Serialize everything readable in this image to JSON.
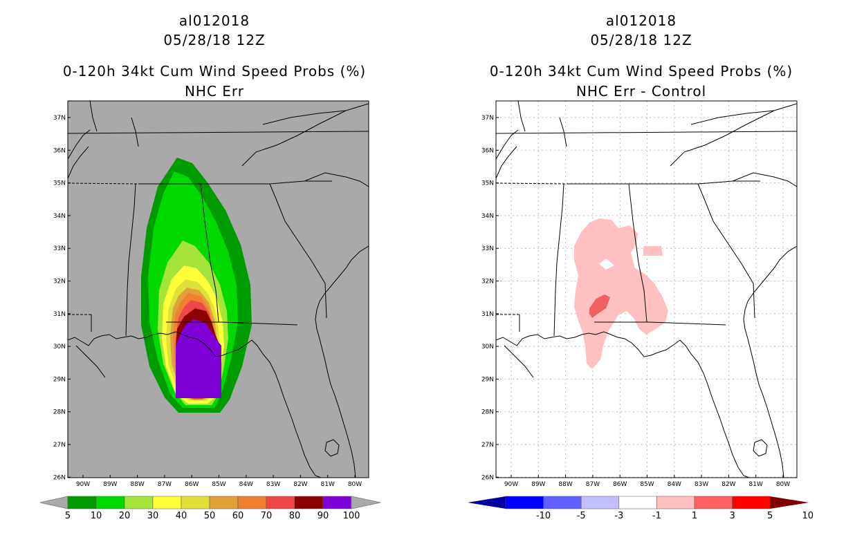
{
  "left_panel": {
    "storm_id": "al012018",
    "date": "05/28/18 12Z",
    "title": "0-120h 34kt Cum Wind Speed Probs (%)",
    "subtitle": "NHC Err",
    "colorbar_labels": [
      "5",
      "10",
      "20",
      "30",
      "40",
      "50",
      "60",
      "70",
      "80",
      "90",
      "100"
    ],
    "colorbar_colors": [
      "#009b00",
      "#00d900",
      "#a5e53a",
      "#ffff3a",
      "#e0e03a",
      "#e0a03a",
      "#f08030",
      "#f04848",
      "#8c0000",
      "#8000d8"
    ]
  },
  "right_panel": {
    "storm_id": "al012018",
    "date": "05/28/18 12Z",
    "title": "0-120h 34kt Cum Wind Speed Probs (%)",
    "subtitle": "NHC Err - Control",
    "colorbar_labels": [
      "-10",
      "-5",
      "-3",
      "-1",
      "1",
      "3",
      "5",
      "10"
    ],
    "colorbar_colors": [
      "#0000a0",
      "#0000ff",
      "#6060ff",
      "#c0c0ff",
      "#ffffff",
      "#ffc0c0",
      "#ff6060",
      "#ff0000",
      "#800000"
    ]
  },
  "axes": {
    "lat_labels": [
      "37N",
      "36N",
      "35N",
      "34N",
      "33N",
      "32N",
      "31N",
      "30N",
      "29N",
      "28N",
      "27N",
      "26N"
    ],
    "lon_labels": [
      "90W",
      "89W",
      "88W",
      "87W",
      "86W",
      "85W",
      "84W",
      "83W",
      "82W",
      "81W",
      "80W"
    ]
  },
  "colors": {
    "land_gray": "#a9a9a9",
    "diff_pink": "#ffc0c0",
    "diff_red": "#f06060"
  }
}
